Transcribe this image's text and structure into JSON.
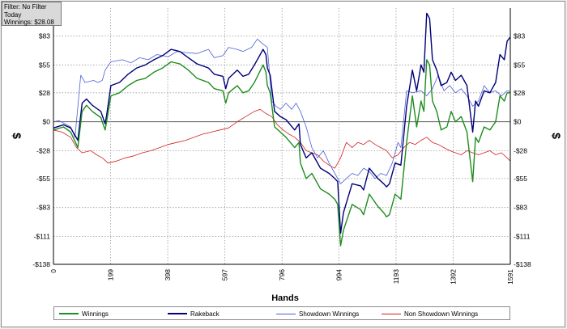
{
  "filter_box": {
    "line1": "Filter: No Filter",
    "line2": "Today",
    "line3": "Winnings: $28.08"
  },
  "chart_data": {
    "type": "line",
    "title": "",
    "xlabel": "Hands",
    "ylabel_left": "$",
    "ylabel_right": "$",
    "xlim": [
      0,
      1591
    ],
    "ylim": [
      -138,
      110
    ],
    "x_ticks": [
      0,
      199,
      398,
      597,
      796,
      994,
      1193,
      1392,
      1591
    ],
    "x_tick_labels": [
      "0",
      "199",
      "398",
      "597",
      "796",
      "994",
      "1193",
      "1392",
      "1591"
    ],
    "y_ticks": [
      83,
      55,
      28,
      0,
      -28,
      -55,
      -83,
      -111,
      -138
    ],
    "y_tick_labels": [
      "$83",
      "$55",
      "$28",
      "$0",
      "-$28",
      "-$55",
      "-$83",
      "-$111",
      "-$138"
    ],
    "grid": true,
    "legend_position": "bottom",
    "series": [
      {
        "name": "Winnings",
        "color": "#1e8c1e",
        "points": [
          [
            0,
            -8
          ],
          [
            35,
            -5
          ],
          [
            60,
            -10
          ],
          [
            85,
            -25
          ],
          [
            100,
            10
          ],
          [
            115,
            16
          ],
          [
            135,
            10
          ],
          [
            165,
            4
          ],
          [
            180,
            -8
          ],
          [
            185,
            0
          ],
          [
            200,
            25
          ],
          [
            230,
            28
          ],
          [
            260,
            35
          ],
          [
            290,
            40
          ],
          [
            320,
            42
          ],
          [
            350,
            48
          ],
          [
            380,
            52
          ],
          [
            410,
            58
          ],
          [
            440,
            56
          ],
          [
            470,
            50
          ],
          [
            500,
            42
          ],
          [
            540,
            38
          ],
          [
            560,
            32
          ],
          [
            590,
            30
          ],
          [
            600,
            18
          ],
          [
            610,
            28
          ],
          [
            640,
            35
          ],
          [
            660,
            28
          ],
          [
            680,
            30
          ],
          [
            700,
            38
          ],
          [
            730,
            55
          ],
          [
            740,
            48
          ],
          [
            745,
            35
          ],
          [
            755,
            28
          ],
          [
            770,
            -5
          ],
          [
            790,
            -10
          ],
          [
            810,
            -15
          ],
          [
            840,
            -25
          ],
          [
            855,
            -20
          ],
          [
            860,
            -40
          ],
          [
            880,
            -55
          ],
          [
            900,
            -50
          ],
          [
            930,
            -65
          ],
          [
            960,
            -70
          ],
          [
            980,
            -75
          ],
          [
            990,
            -80
          ],
          [
            1000,
            -120
          ],
          [
            1010,
            -105
          ],
          [
            1040,
            -80
          ],
          [
            1070,
            -85
          ],
          [
            1080,
            -90
          ],
          [
            1100,
            -70
          ],
          [
            1130,
            -82
          ],
          [
            1150,
            -88
          ],
          [
            1160,
            -92
          ],
          [
            1170,
            -90
          ],
          [
            1190,
            -70
          ],
          [
            1210,
            -75
          ],
          [
            1230,
            -20
          ],
          [
            1250,
            25
          ],
          [
            1265,
            -5
          ],
          [
            1280,
            20
          ],
          [
            1290,
            10
          ],
          [
            1300,
            60
          ],
          [
            1310,
            55
          ],
          [
            1320,
            20
          ],
          [
            1335,
            10
          ],
          [
            1350,
            -8
          ],
          [
            1370,
            -5
          ],
          [
            1385,
            10
          ],
          [
            1400,
            0
          ],
          [
            1420,
            5
          ],
          [
            1440,
            -10
          ],
          [
            1460,
            -58
          ],
          [
            1470,
            -15
          ],
          [
            1480,
            -20
          ],
          [
            1500,
            -5
          ],
          [
            1520,
            -8
          ],
          [
            1540,
            0
          ],
          [
            1555,
            25
          ],
          [
            1570,
            20
          ],
          [
            1580,
            28
          ],
          [
            1591,
            28
          ]
        ]
      },
      {
        "name": "Rakeback",
        "color": "#00007a",
        "points": [
          [
            0,
            -6
          ],
          [
            35,
            -3
          ],
          [
            60,
            -6
          ],
          [
            85,
            -18
          ],
          [
            100,
            18
          ],
          [
            115,
            22
          ],
          [
            135,
            16
          ],
          [
            165,
            10
          ],
          [
            180,
            -2
          ],
          [
            185,
            6
          ],
          [
            200,
            35
          ],
          [
            230,
            38
          ],
          [
            260,
            46
          ],
          [
            290,
            52
          ],
          [
            320,
            55
          ],
          [
            350,
            60
          ],
          [
            380,
            64
          ],
          [
            410,
            70
          ],
          [
            440,
            68
          ],
          [
            470,
            62
          ],
          [
            500,
            56
          ],
          [
            540,
            52
          ],
          [
            560,
            46
          ],
          [
            590,
            44
          ],
          [
            600,
            32
          ],
          [
            610,
            42
          ],
          [
            640,
            50
          ],
          [
            660,
            44
          ],
          [
            680,
            46
          ],
          [
            700,
            55
          ],
          [
            730,
            70
          ],
          [
            740,
            65
          ],
          [
            745,
            52
          ],
          [
            755,
            45
          ],
          [
            770,
            10
          ],
          [
            790,
            5
          ],
          [
            810,
            2
          ],
          [
            840,
            -8
          ],
          [
            855,
            -2
          ],
          [
            860,
            -22
          ],
          [
            880,
            -35
          ],
          [
            900,
            -30
          ],
          [
            930,
            -45
          ],
          [
            960,
            -50
          ],
          [
            980,
            -55
          ],
          [
            990,
            -58
          ],
          [
            1000,
            -108
          ],
          [
            1010,
            -88
          ],
          [
            1040,
            -60
          ],
          [
            1070,
            -62
          ],
          [
            1080,
            -66
          ],
          [
            1100,
            -45
          ],
          [
            1130,
            -55
          ],
          [
            1150,
            -60
          ],
          [
            1160,
            -63
          ],
          [
            1170,
            -60
          ],
          [
            1190,
            -40
          ],
          [
            1210,
            -42
          ],
          [
            1230,
            15
          ],
          [
            1250,
            50
          ],
          [
            1265,
            30
          ],
          [
            1280,
            55
          ],
          [
            1290,
            48
          ],
          [
            1300,
            105
          ],
          [
            1310,
            100
          ],
          [
            1320,
            60
          ],
          [
            1335,
            50
          ],
          [
            1350,
            35
          ],
          [
            1370,
            38
          ],
          [
            1385,
            48
          ],
          [
            1400,
            40
          ],
          [
            1420,
            45
          ],
          [
            1440,
            35
          ],
          [
            1460,
            -10
          ],
          [
            1470,
            20
          ],
          [
            1480,
            15
          ],
          [
            1500,
            30
          ],
          [
            1520,
            28
          ],
          [
            1540,
            38
          ],
          [
            1555,
            65
          ],
          [
            1570,
            60
          ],
          [
            1580,
            78
          ],
          [
            1591,
            82
          ]
        ]
      },
      {
        "name": "Showdown Winnings",
        "color": "#4a5fd6",
        "points": [
          [
            0,
            0
          ],
          [
            20,
            1
          ],
          [
            40,
            -2
          ],
          [
            60,
            -5
          ],
          [
            75,
            -15
          ],
          [
            95,
            45
          ],
          [
            110,
            38
          ],
          [
            140,
            40
          ],
          [
            155,
            38
          ],
          [
            170,
            40
          ],
          [
            180,
            50
          ],
          [
            200,
            58
          ],
          [
            240,
            60
          ],
          [
            270,
            57
          ],
          [
            300,
            62
          ],
          [
            330,
            60
          ],
          [
            360,
            65
          ],
          [
            400,
            63
          ],
          [
            430,
            68
          ],
          [
            460,
            67
          ],
          [
            500,
            66
          ],
          [
            540,
            70
          ],
          [
            560,
            62
          ],
          [
            590,
            64
          ],
          [
            610,
            72
          ],
          [
            640,
            70
          ],
          [
            660,
            68
          ],
          [
            690,
            72
          ],
          [
            710,
            80
          ],
          [
            730,
            75
          ],
          [
            745,
            72
          ],
          [
            760,
            20
          ],
          [
            775,
            15
          ],
          [
            790,
            12
          ],
          [
            810,
            18
          ],
          [
            830,
            12
          ],
          [
            845,
            18
          ],
          [
            860,
            10
          ],
          [
            880,
            -5
          ],
          [
            900,
            -25
          ],
          [
            920,
            -35
          ],
          [
            940,
            -28
          ],
          [
            960,
            -40
          ],
          [
            980,
            -50
          ],
          [
            1000,
            -60
          ],
          [
            1020,
            -55
          ],
          [
            1040,
            -50
          ],
          [
            1060,
            -52
          ],
          [
            1080,
            -45
          ],
          [
            1100,
            -48
          ],
          [
            1120,
            -55
          ],
          [
            1140,
            -50
          ],
          [
            1160,
            -52
          ],
          [
            1180,
            -40
          ],
          [
            1200,
            -20
          ],
          [
            1210,
            -25
          ],
          [
            1230,
            30
          ],
          [
            1250,
            28
          ],
          [
            1280,
            30
          ],
          [
            1300,
            25
          ],
          [
            1320,
            32
          ],
          [
            1340,
            45
          ],
          [
            1360,
            30
          ],
          [
            1380,
            35
          ],
          [
            1400,
            28
          ],
          [
            1420,
            32
          ],
          [
            1440,
            25
          ],
          [
            1460,
            15
          ],
          [
            1480,
            20
          ],
          [
            1500,
            35
          ],
          [
            1520,
            28
          ],
          [
            1540,
            30
          ],
          [
            1560,
            25
          ],
          [
            1580,
            30
          ],
          [
            1591,
            29
          ]
        ]
      },
      {
        "name": "Non Showdown Winnings",
        "color": "#d22020",
        "points": [
          [
            0,
            -8
          ],
          [
            30,
            -10
          ],
          [
            60,
            -15
          ],
          [
            80,
            -25
          ],
          [
            100,
            -30
          ],
          [
            130,
            -28
          ],
          [
            150,
            -32
          ],
          [
            170,
            -35
          ],
          [
            190,
            -40
          ],
          [
            220,
            -38
          ],
          [
            250,
            -35
          ],
          [
            280,
            -33
          ],
          [
            310,
            -30
          ],
          [
            340,
            -28
          ],
          [
            370,
            -25
          ],
          [
            400,
            -22
          ],
          [
            430,
            -20
          ],
          [
            460,
            -18
          ],
          [
            490,
            -15
          ],
          [
            520,
            -12
          ],
          [
            550,
            -10
          ],
          [
            580,
            -8
          ],
          [
            610,
            -6
          ],
          [
            640,
            0
          ],
          [
            670,
            5
          ],
          [
            700,
            10
          ],
          [
            720,
            12
          ],
          [
            740,
            8
          ],
          [
            760,
            5
          ],
          [
            780,
            -3
          ],
          [
            800,
            -8
          ],
          [
            820,
            -12
          ],
          [
            840,
            -15
          ],
          [
            860,
            -20
          ],
          [
            880,
            -28
          ],
          [
            900,
            -30
          ],
          [
            920,
            -32
          ],
          [
            940,
            -38
          ],
          [
            960,
            -42
          ],
          [
            980,
            -45
          ],
          [
            1000,
            -35
          ],
          [
            1020,
            -20
          ],
          [
            1040,
            -25
          ],
          [
            1060,
            -20
          ],
          [
            1080,
            -22
          ],
          [
            1100,
            -18
          ],
          [
            1120,
            -22
          ],
          [
            1140,
            -25
          ],
          [
            1160,
            -28
          ],
          [
            1180,
            -35
          ],
          [
            1200,
            -32
          ],
          [
            1220,
            -25
          ],
          [
            1240,
            -20
          ],
          [
            1260,
            -22
          ],
          [
            1280,
            -18
          ],
          [
            1300,
            -15
          ],
          [
            1320,
            -20
          ],
          [
            1340,
            -22
          ],
          [
            1360,
            -25
          ],
          [
            1380,
            -28
          ],
          [
            1400,
            -30
          ],
          [
            1420,
            -32
          ],
          [
            1440,
            -28
          ],
          [
            1460,
            -30
          ],
          [
            1480,
            -32
          ],
          [
            1500,
            -30
          ],
          [
            1520,
            -28
          ],
          [
            1540,
            -32
          ],
          [
            1560,
            -30
          ],
          [
            1580,
            -35
          ],
          [
            1591,
            -38
          ]
        ]
      }
    ]
  }
}
